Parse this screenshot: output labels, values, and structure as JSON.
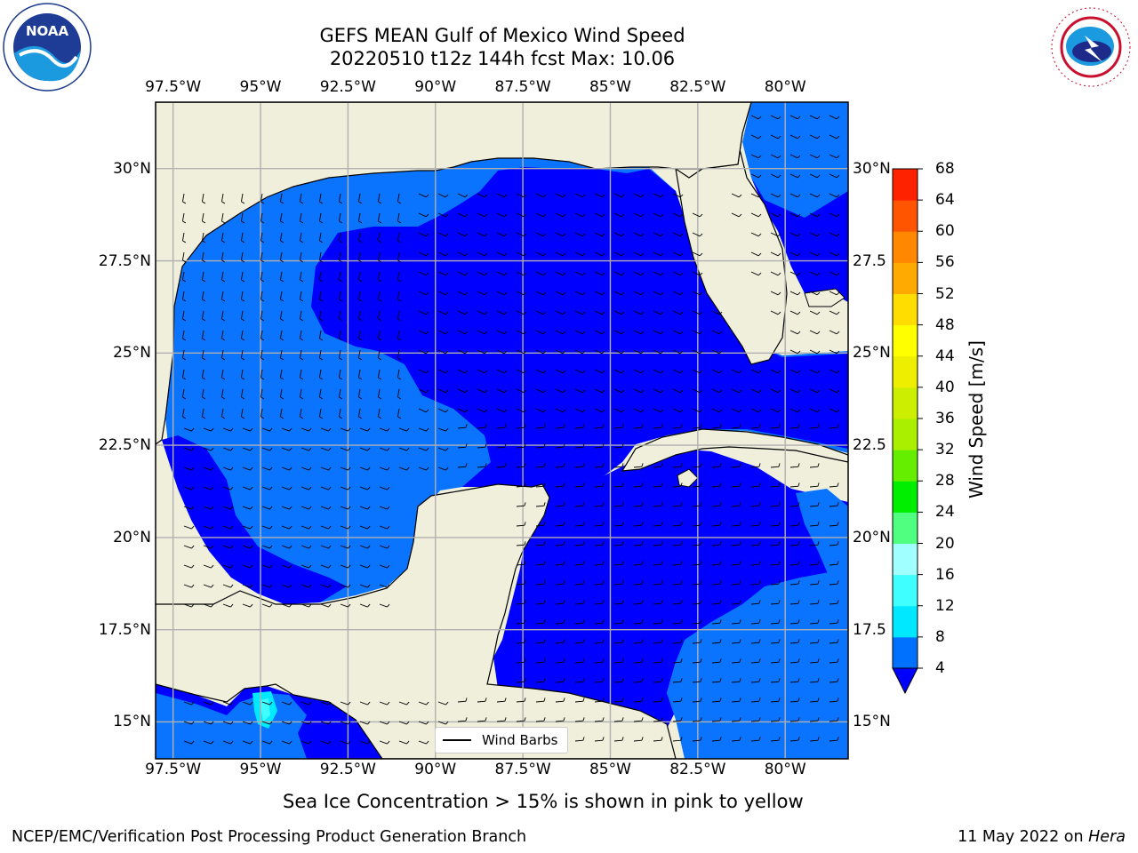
{
  "title": {
    "line1": "GEFS MEAN Gulf of Mexico Wind Speed",
    "line2": "20220510 t12z 144h fcst   Max: 10.06"
  },
  "axes": {
    "lon_labels": [
      "97.5°W",
      "95°W",
      "92.5°W",
      "90°W",
      "87.5°W",
      "85°W",
      "82.5°W",
      "80°W"
    ],
    "lon_values": [
      -97.5,
      -95,
      -92.5,
      -90,
      -87.5,
      -85,
      -82.5,
      -80
    ],
    "lat_labels_left": [
      "30°N",
      "27.5°N",
      "25°N",
      "22.5°N",
      "20°N",
      "17.5°N",
      "15°N"
    ],
    "lat_labels_right": [
      "30°N",
      "27.5",
      "25°N",
      "22.5",
      "20°N",
      "17.5",
      "15°N"
    ],
    "lat_values": [
      30,
      27.5,
      25,
      22.5,
      20,
      17.5,
      15
    ],
    "lon_range": [
      -98,
      -78.2
    ],
    "lat_range": [
      14,
      31.8
    ]
  },
  "colorbar": {
    "label": "Wind Speed [m/s]",
    "levels": [
      4,
      8,
      12,
      16,
      20,
      24,
      28,
      32,
      36,
      40,
      44,
      48,
      52,
      56,
      60,
      64,
      68
    ],
    "colors": [
      "#0070ff",
      "#00e8ff",
      "#40ffff",
      "#a0ffff",
      "#50ff80",
      "#00ee00",
      "#66ee00",
      "#aaee00",
      "#ccee00",
      "#eeee00",
      "#ffff00",
      "#ffdd00",
      "#ffaa00",
      "#ff8800",
      "#ff5500",
      "#ff2200"
    ],
    "under_color": "#0000ff",
    "extend": "min"
  },
  "map_colors": {
    "land": "#efefdc",
    "speed_low": "#0000ff",
    "speed_4_8": "#0a74ff",
    "speed_8_12": "#00eaff",
    "speed_12_16": "#40ffff",
    "grid": "#b0b0b0"
  },
  "legend": {
    "label": "Wind Barbs"
  },
  "footer": {
    "note": "Sea Ice Concentration > 15% is shown in pink to yellow",
    "left": "NCEP/EMC/Verification Post Processing Product Generation Branch",
    "right_date": "11 May 2022 on ",
    "right_host": "Hera"
  },
  "logos": {
    "noaa_text": "NOAA",
    "nws_text": "NATIONAL WEATHER SERVICE"
  },
  "icons": {
    "noaa": "noaa-logo-icon",
    "nws": "nws-logo-icon"
  }
}
